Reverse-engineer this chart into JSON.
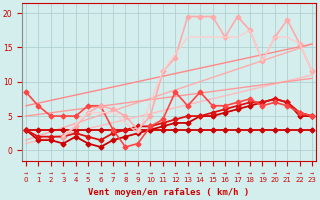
{
  "bg_color": "#d4eeed",
  "grid_color": "#aacccc",
  "xlabel": "Vent moyen/en rafales ( km/h )",
  "xlim": [
    -0.3,
    23.3
  ],
  "ylim": [
    -1.5,
    21.5
  ],
  "yticks": [
    0,
    5,
    10,
    15,
    20
  ],
  "xticks": [
    0,
    1,
    2,
    3,
    4,
    5,
    6,
    7,
    8,
    9,
    10,
    11,
    12,
    13,
    14,
    15,
    16,
    17,
    18,
    19,
    20,
    21,
    22,
    23
  ],
  "series": [
    {
      "comment": "straight diagonal line - lightest pink, no markers",
      "x": [
        0,
        23
      ],
      "y": [
        1.0,
        11.0
      ],
      "color": "#ffbbbb",
      "lw": 1.0,
      "marker": null,
      "ms": 0
    },
    {
      "comment": "straight diagonal line - light pink, no markers",
      "x": [
        0,
        23
      ],
      "y": [
        1.5,
        15.5
      ],
      "color": "#ffaaaa",
      "lw": 1.0,
      "marker": null,
      "ms": 0
    },
    {
      "comment": "straight diagonal - medium pink, no markers",
      "x": [
        0,
        23
      ],
      "y": [
        5.0,
        10.5
      ],
      "color": "#ff9999",
      "lw": 1.0,
      "marker": null,
      "ms": 0
    },
    {
      "comment": "straight diagonal - medium pink, no markers - uppermost straight",
      "x": [
        0,
        23
      ],
      "y": [
        6.5,
        15.5
      ],
      "color": "#ff8888",
      "lw": 1.0,
      "marker": null,
      "ms": 0
    },
    {
      "comment": "flat line at y=3, dark red with diamond markers",
      "x": [
        0,
        1,
        2,
        3,
        4,
        5,
        6,
        7,
        8,
        9,
        10,
        11,
        12,
        13,
        14,
        15,
        16,
        17,
        18,
        19,
        20,
        21,
        22,
        23
      ],
      "y": [
        3,
        3,
        3,
        3,
        3,
        3,
        3,
        3,
        3,
        3,
        3,
        3,
        3,
        3,
        3,
        3,
        3,
        3,
        3,
        3,
        3,
        3,
        3,
        3
      ],
      "color": "#cc0000",
      "lw": 1.3,
      "marker": "D",
      "ms": 2.5
    },
    {
      "comment": "zigzag line dark red with markers - lower cluster",
      "x": [
        0,
        1,
        2,
        3,
        4,
        5,
        6,
        7,
        8,
        9,
        10,
        11,
        12,
        13,
        14,
        15,
        16,
        17,
        18,
        19,
        20,
        21,
        22,
        23
      ],
      "y": [
        3,
        1.5,
        1.5,
        1,
        2,
        1,
        0.5,
        1.5,
        2,
        2.5,
        3,
        3.5,
        4,
        4,
        5,
        5,
        5.5,
        6,
        6.5,
        7,
        7.5,
        7,
        5,
        5
      ],
      "color": "#cc0000",
      "lw": 1.3,
      "marker": "D",
      "ms": 2.5
    },
    {
      "comment": "zigzag medium red with markers",
      "x": [
        0,
        1,
        2,
        3,
        4,
        5,
        6,
        7,
        8,
        9,
        10,
        11,
        12,
        13,
        14,
        15,
        16,
        17,
        18,
        19,
        20,
        21,
        22,
        23
      ],
      "y": [
        3,
        2,
        2,
        2,
        2.5,
        2,
        1.5,
        2.5,
        3,
        3.5,
        3.5,
        4,
        4.5,
        5,
        5,
        5.5,
        6,
        6.5,
        7,
        7,
        7.5,
        7,
        5.5,
        5
      ],
      "color": "#dd1111",
      "lw": 1.3,
      "marker": "D",
      "ms": 2.5
    },
    {
      "comment": "high-rise line starting around x=3, light pink with markers",
      "x": [
        0,
        1,
        2,
        3,
        4,
        5,
        6,
        7,
        8,
        9,
        10,
        11,
        12,
        13,
        14,
        15,
        16,
        17,
        18,
        19,
        20,
        21,
        22,
        23
      ],
      "y": [
        8.5,
        6.5,
        5.0,
        5.0,
        5.0,
        6.5,
        6.5,
        3.0,
        0.5,
        1.0,
        3.5,
        4.5,
        8.5,
        6.5,
        8.5,
        6.5,
        6.5,
        7,
        7.5,
        6.5,
        7.0,
        6.5,
        5.5,
        5.0
      ],
      "color": "#ff4444",
      "lw": 1.2,
      "marker": "D",
      "ms": 2.5
    },
    {
      "comment": "zigzag high line, light salmon with markers, peaks ~20 at x=14-15",
      "x": [
        3,
        4,
        5,
        6,
        7,
        8,
        9,
        10,
        11,
        12,
        13,
        14,
        15,
        16,
        17,
        18,
        19,
        20,
        21,
        22,
        23
      ],
      "y": [
        2.0,
        3.5,
        5.5,
        6.5,
        6.0,
        5.0,
        3.0,
        5.0,
        11.5,
        13.5,
        19.5,
        19.5,
        19.5,
        16.5,
        19.5,
        17.5,
        13.0,
        16.5,
        19.0,
        15.5,
        11.5
      ],
      "color": "#ffaaaa",
      "lw": 1.2,
      "marker": "D",
      "ms": 2.5
    },
    {
      "comment": "second high zigzag, lighter pink with markers",
      "x": [
        3,
        5,
        7,
        9,
        11,
        13,
        14,
        16,
        17,
        18,
        19,
        20,
        21,
        22,
        23
      ],
      "y": [
        2.0,
        5.5,
        5.5,
        2.5,
        11.5,
        16.5,
        16.5,
        16.5,
        16.5,
        17.5,
        13.0,
        16.5,
        16.5,
        15.5,
        11.5
      ],
      "color": "#ffcccc",
      "lw": 1.0,
      "marker": null,
      "ms": 0
    }
  ]
}
